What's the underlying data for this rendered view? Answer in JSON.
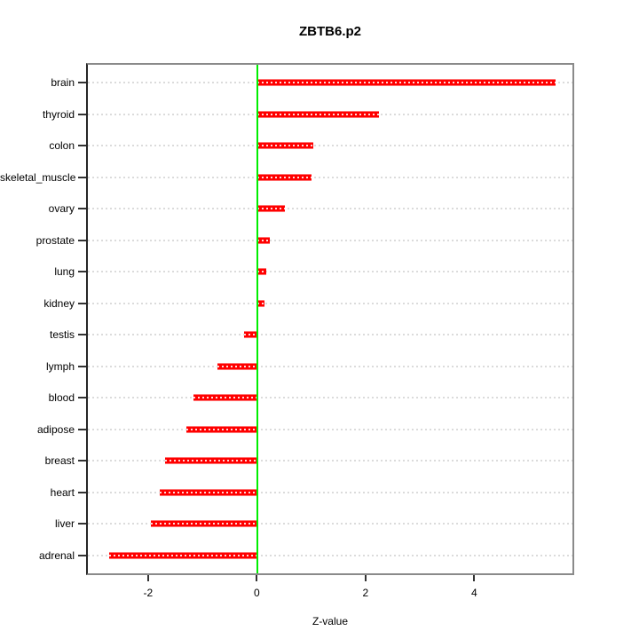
{
  "title": "ZBTB6.p2",
  "xlabel": "Z-value",
  "colors": {
    "bar": "#ff0000",
    "zero_line": "#00ee00",
    "gridline": "#dbdbdb",
    "frame": "#8a8a8a"
  },
  "chart_data": {
    "type": "bar",
    "orientation": "horizontal",
    "title": "ZBTB6.p2",
    "xlabel": "Z-value",
    "ylabel": "",
    "categories": [
      "brain",
      "thyroid",
      "colon",
      "skeletal_muscle",
      "ovary",
      "prostate",
      "lung",
      "kidney",
      "testis",
      "lymph",
      "blood",
      "adipose",
      "breast",
      "heart",
      "liver",
      "adrenal"
    ],
    "values": [
      5.53,
      2.25,
      1.03,
      1.0,
      0.51,
      0.24,
      0.17,
      0.13,
      -0.25,
      -0.74,
      -1.18,
      -1.31,
      -1.71,
      -1.81,
      -1.97,
      -2.75
    ],
    "x_ticks": [
      -2,
      0,
      2,
      4
    ],
    "xlim": [
      -3.14,
      5.84
    ],
    "grid": true,
    "zero_reference_line": 0,
    "bar_color": "#ff0000",
    "zero_line_color": "#00ee00",
    "legend": "none"
  }
}
